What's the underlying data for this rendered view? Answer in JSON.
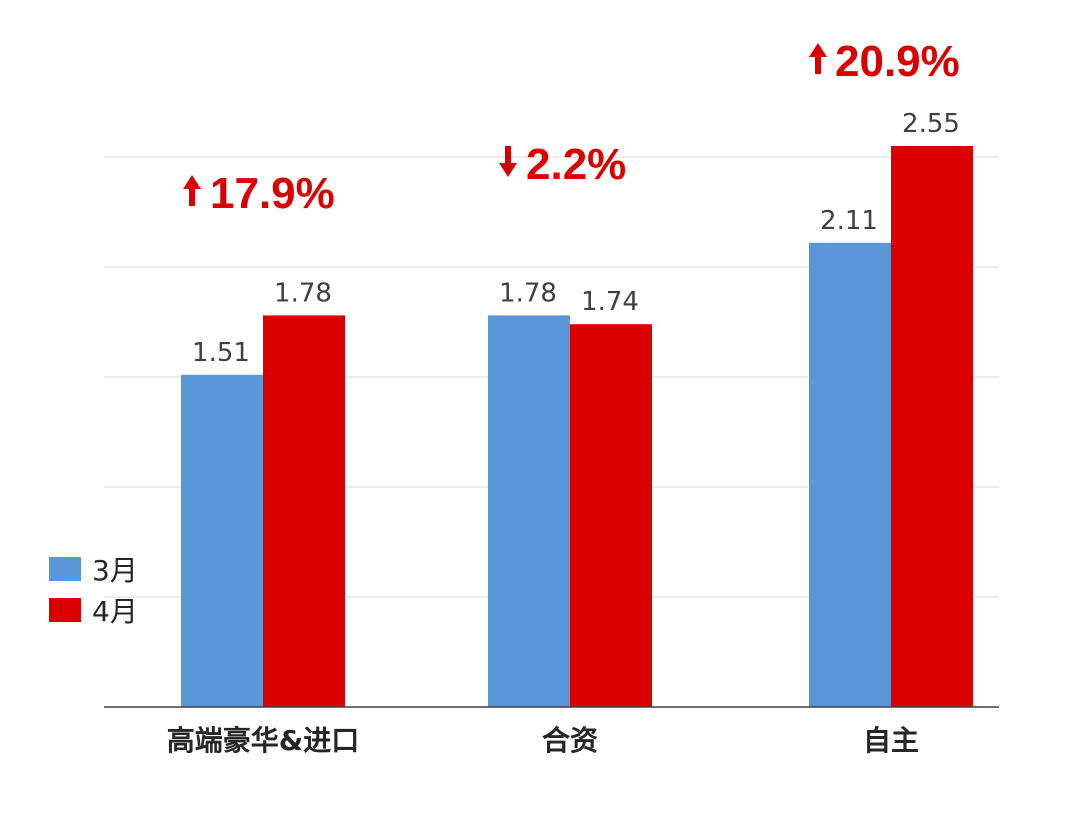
{
  "chart_data": {
    "type": "bar",
    "categories": [
      "高端豪华&进口",
      "合资",
      "自主"
    ],
    "series": [
      {
        "name": "3月",
        "values": [
          1.51,
          1.78,
          2.11
        ],
        "color": "#5B96D9"
      },
      {
        "name": "4月",
        "values": [
          1.78,
          1.74,
          2.55
        ],
        "color": "#DB0000"
      }
    ],
    "value_labels": [
      [
        "1.51",
        "1.78",
        "2.11"
      ],
      [
        "1.78",
        "1.74",
        "2.55"
      ]
    ],
    "changes": [
      {
        "text": "17.9%",
        "direction": "up"
      },
      {
        "text": "2.2%",
        "direction": "down"
      },
      {
        "text": "20.9%",
        "direction": "up"
      }
    ],
    "change_color": "#DB0000",
    "ylim": [
      0,
      2.5
    ],
    "grid": true,
    "grid_color": "#D9D9D9",
    "legend_position": "left"
  }
}
